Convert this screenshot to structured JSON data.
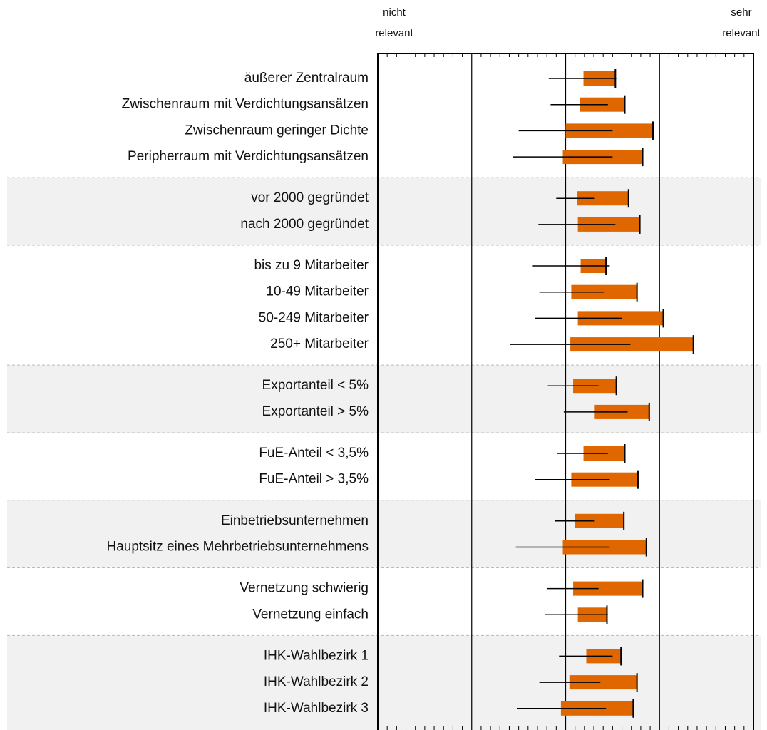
{
  "chart_data": {
    "type": "range-bar",
    "axis_labels": {
      "left": [
        "nicht",
        "relevant"
      ],
      "right": [
        "sehr",
        "relevant"
      ]
    },
    "xlim": [
      1,
      5
    ],
    "xticks": [
      1,
      2,
      3,
      4,
      5
    ],
    "grid": true,
    "bar_color": "#e06600",
    "line_color": "#000000",
    "groups": [
      {
        "categories": [
          "äußerer Zentralraum",
          "Zwischenraum mit Verdichtungsansätzen",
          "Zwischenraum geringer Dichte",
          "Peripherraum mit Verdichtungsansätzen"
        ],
        "bars": [
          [
            3.19,
            3.53
          ],
          [
            3.15,
            3.63
          ],
          [
            3.0,
            3.93
          ],
          [
            2.97,
            3.82
          ]
        ],
        "lines": [
          [
            2.82,
            3.54
          ],
          [
            2.84,
            3.45
          ],
          [
            2.5,
            3.5
          ],
          [
            2.44,
            3.5
          ]
        ]
      },
      {
        "categories": [
          "vor 2000 gegründet",
          "nach 2000 gegründet"
        ],
        "bars": [
          [
            3.12,
            3.67
          ],
          [
            3.13,
            3.79
          ]
        ],
        "lines": [
          [
            2.9,
            3.31
          ],
          [
            2.71,
            3.53
          ]
        ]
      },
      {
        "categories": [
          "bis zu 9 Mitarbeiter",
          "10-49 Mitarbeiter",
          "50-249 Mitarbeiter",
          "250+ Mitarbeiter"
        ],
        "bars": [
          [
            3.16,
            3.43
          ],
          [
            3.06,
            3.76
          ],
          [
            3.13,
            4.04
          ],
          [
            3.05,
            4.36
          ]
        ],
        "lines": [
          [
            2.65,
            3.47
          ],
          [
            2.72,
            3.41
          ],
          [
            2.67,
            3.6
          ],
          [
            2.41,
            3.69
          ]
        ]
      },
      {
        "categories": [
          "Exportanteil < 5%",
          "Exportanteil > 5%"
        ],
        "bars": [
          [
            3.08,
            3.54
          ],
          [
            3.31,
            3.89
          ]
        ],
        "lines": [
          [
            2.81,
            3.35
          ],
          [
            2.98,
            3.66
          ]
        ]
      },
      {
        "categories": [
          "FuE-Anteil < 3,5%",
          "FuE-Anteil > 3,5%"
        ],
        "bars": [
          [
            3.19,
            3.63
          ],
          [
            3.06,
            3.77
          ]
        ],
        "lines": [
          [
            2.91,
            3.45
          ],
          [
            2.67,
            3.47
          ]
        ]
      },
      {
        "categories": [
          "Einbetriebsunternehmen",
          "Hauptsitz eines Mehrbetriebsunternehmens"
        ],
        "bars": [
          [
            3.1,
            3.62
          ],
          [
            2.97,
            3.86
          ]
        ],
        "lines": [
          [
            2.89,
            3.31
          ],
          [
            2.47,
            3.47
          ]
        ]
      },
      {
        "categories": [
          "Vernetzung schwierig",
          "Vernetzung einfach"
        ],
        "bars": [
          [
            3.08,
            3.82
          ],
          [
            3.13,
            3.44
          ]
        ],
        "lines": [
          [
            2.8,
            3.35
          ],
          [
            2.78,
            3.45
          ]
        ]
      },
      {
        "categories": [
          "IHK-Wahlbezirk 1",
          "IHK-Wahlbezirk 2",
          "IHK-Wahlbezirk 3"
        ],
        "bars": [
          [
            3.22,
            3.59
          ],
          [
            3.04,
            3.76
          ],
          [
            2.95,
            3.72
          ]
        ],
        "lines": [
          [
            2.93,
            3.5
          ],
          [
            2.72,
            3.37
          ],
          [
            2.48,
            3.43
          ]
        ]
      }
    ]
  }
}
